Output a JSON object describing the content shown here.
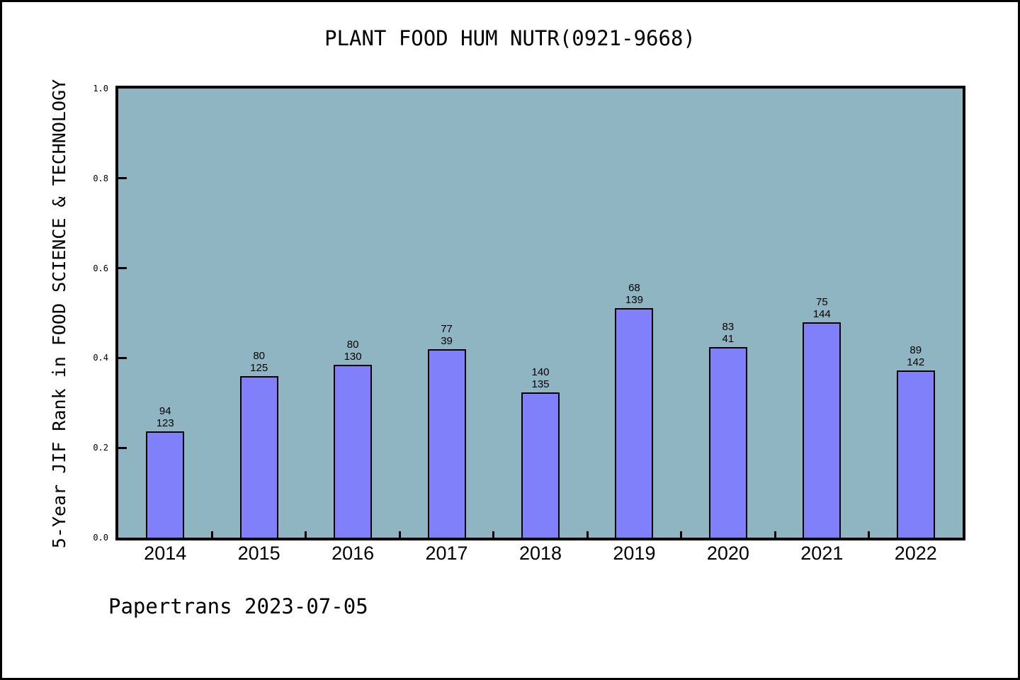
{
  "header": {
    "title": "PLANT FOOD HUM NUTR(0921-9668)"
  },
  "footer": {
    "credit": "Papertrans 2023-07-05"
  },
  "colors": {
    "page_bg": "#ffffff",
    "plot_bg": "#8fb5c3",
    "bar_fill": "#8080fa",
    "bar_edge": "#000000",
    "frame": "#000000",
    "text": "#000000"
  },
  "chart_data": {
    "type": "bar",
    "title": "PLANT FOOD HUM NUTR(0921-9668)",
    "xlabel": "",
    "ylabel": "5-Year JIF Rank in FOOD SCIENCE & TECHNOLOGY",
    "ylim": [
      0.0,
      1.0
    ],
    "ytick_labels": [
      "0.0",
      "0.2",
      "0.4",
      "0.6",
      "0.8",
      "1.0"
    ],
    "ytick_values": [
      0.0,
      0.2,
      0.4,
      0.6,
      0.8,
      1.0
    ],
    "grid": false,
    "legend": false,
    "categories": [
      "2014",
      "2015",
      "2016",
      "2017",
      "2018",
      "2019",
      "2020",
      "2021",
      "2022"
    ],
    "values": [
      0.236,
      0.36,
      0.385,
      0.42,
      0.324,
      0.511,
      0.424,
      0.479,
      0.373
    ],
    "bar_labels": [
      [
        "94",
        "123"
      ],
      [
        "80",
        "125"
      ],
      [
        "80",
        "130"
      ],
      [
        "77",
        "39"
      ],
      [
        "140",
        "135"
      ],
      [
        "68",
        "139"
      ],
      [
        "83",
        "41"
      ],
      [
        "75",
        "144"
      ],
      [
        "89",
        "142"
      ]
    ],
    "annotation": "Papertrans 2023-07-05"
  }
}
